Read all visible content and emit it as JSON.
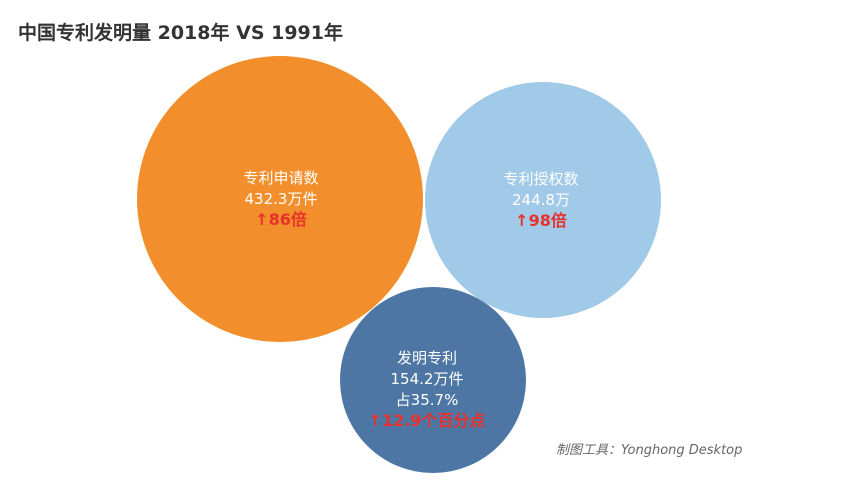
{
  "chart_data": {
    "type": "bubble",
    "title": "中国专利发明量 2018年 VS 1991年",
    "series": [
      {
        "name": "专利申请数",
        "value_text": "432.3万件",
        "value": 432.3,
        "share": "",
        "growth": "↑86倍",
        "color": "#f28f2c"
      },
      {
        "name": "专利授权数",
        "value_text": "244.8万",
        "value": 244.8,
        "share": "",
        "growth": "↑98倍",
        "color": "#a1c9e8"
      },
      {
        "name": "发明专利",
        "value_text": "154.2万件",
        "value": 154.2,
        "share": "占35.7%",
        "growth": "↑12.9个百分点",
        "color": "#4e76a4"
      }
    ]
  },
  "credit": "制图工具：Yonghong Desktop"
}
